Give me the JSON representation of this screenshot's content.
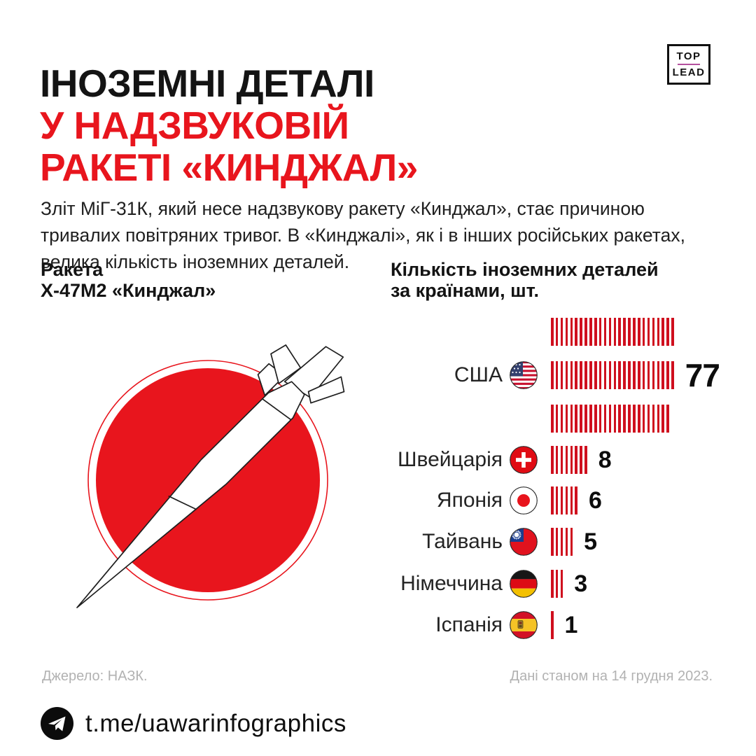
{
  "colors": {
    "accent_red": "#e8151d",
    "bar_red": "#cf0f1e",
    "title_black": "#141414",
    "footer_gray": "#b2b2b2",
    "logo_divider": "#b4509e"
  },
  "header": {
    "title_line1": "ІНОЗЕМНІ ДЕТАЛІ",
    "title_line2": "У НАДЗВУКОВІЙ",
    "title_line3": "РАКЕТІ «КИНДЖАЛ»",
    "logo": {
      "top": "TOP",
      "lead": "LEAD"
    }
  },
  "intro": {
    "line1": "Зліт МіГ-31К, який несе надзвукову ракету «Кинджал», стає причиною",
    "line2": "тривалих повітряних тривог. В «Кинджалі», як і в інших російських ракетах,",
    "line3": "велика кількість іноземних деталей."
  },
  "missile_section": {
    "title_line1": "Ракета",
    "title_line2": "Х-47М2 «Кинджал»"
  },
  "chart_title": {
    "line1": "Кількість іноземних деталей",
    "line2": "за країнами, шт."
  },
  "chart_data": {
    "type": "bar",
    "style": "pictogram-tally",
    "title": "Кількість іноземних деталей за країнами, шт.",
    "unit": "шт.",
    "categories": [
      "США",
      "Швейцарія",
      "Японія",
      "Тайвань",
      "Німеччина",
      "Іспанія"
    ],
    "values": [
      77,
      8,
      6,
      5,
      3,
      1
    ],
    "bar_rows": [
      [
        26,
        26,
        25
      ],
      [
        8
      ],
      [
        6
      ],
      [
        5
      ],
      [
        3
      ],
      [
        1
      ]
    ],
    "flags": [
      "usa",
      "switzerland",
      "japan",
      "taiwan",
      "germany",
      "spain"
    ],
    "legend_position": "none",
    "grid": false
  },
  "footer": {
    "source": "Джерело: НАЗК.",
    "date_note": "Дані станом на 14 грудня 2023.",
    "telegram": "t.me/uawarinfographics"
  }
}
